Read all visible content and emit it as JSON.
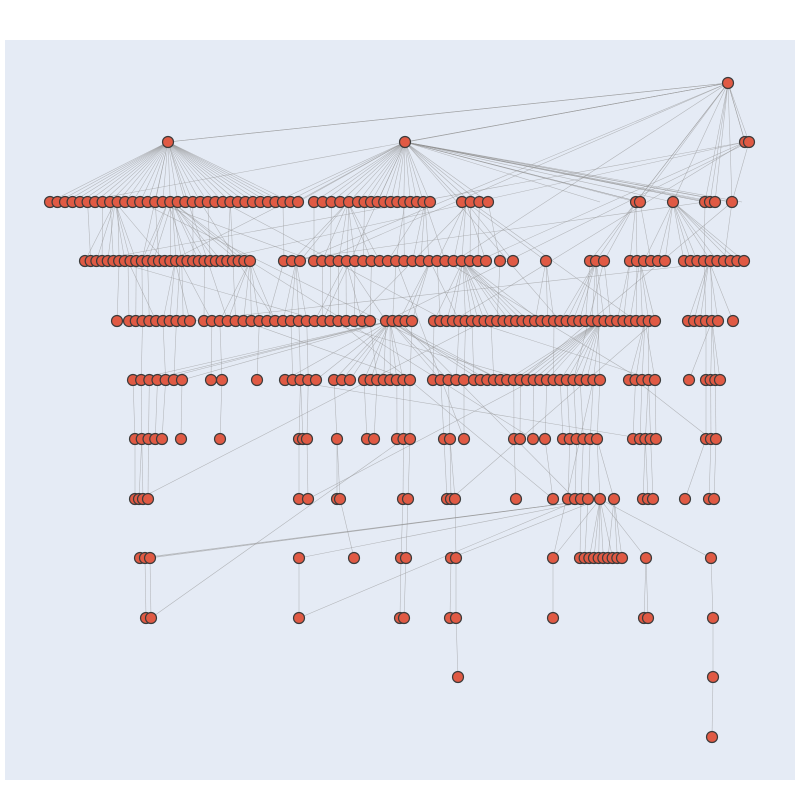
{
  "figure": {
    "kind": "hierarchical network graph",
    "plot_background": "#e5ebf5",
    "page_background": "#ffffff",
    "node_fill": "#e05a44",
    "node_stroke": "#3b3b3b",
    "edge_color": "#8f8f8f",
    "depth_levels": 12,
    "roots": 3,
    "labels_shown": false
  }
}
